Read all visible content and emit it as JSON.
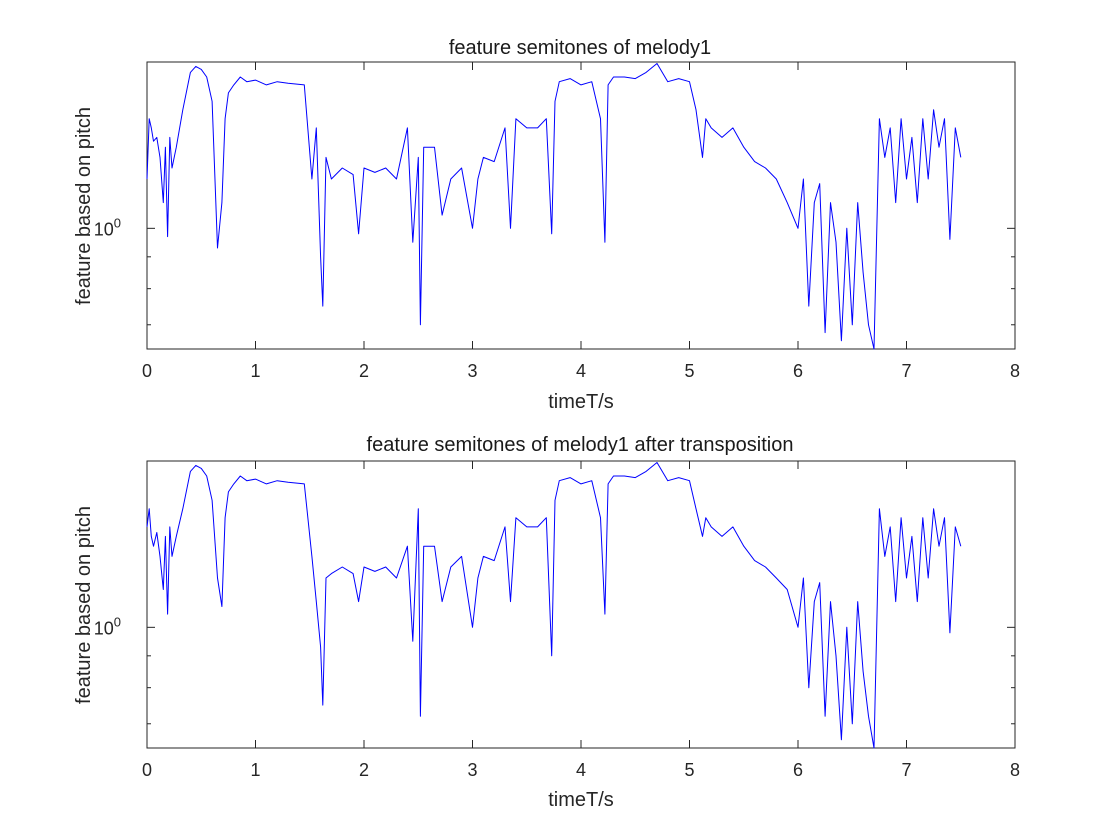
{
  "chart_data": [
    {
      "type": "line",
      "title": "feature semitones of melody1",
      "xlabel": "timeT/s",
      "ylabel": "feature based on pitch",
      "xlim": [
        0,
        8
      ],
      "x_ticks": [
        "0",
        "1",
        "2",
        "3",
        "4",
        "5",
        "6",
        "7",
        "8"
      ],
      "yscale": "log",
      "ylim": [
        0.64,
        1.85
      ],
      "y_major_ticks": [
        {
          "value": 1,
          "base": "10",
          "exp": "0"
        }
      ],
      "grid": false,
      "color": "#0000ff",
      "series": [
        {
          "x": [
            0,
            0.02,
            0.04,
            0.06,
            0.09,
            0.12,
            0.15,
            0.17,
            0.19,
            0.21,
            0.23,
            0.27,
            0.33,
            0.4,
            0.45,
            0.5,
            0.55,
            0.6,
            0.65,
            0.69,
            0.72,
            0.75,
            0.8,
            0.86,
            0.92,
            1.0,
            1.1,
            1.2,
            1.3,
            1.45,
            1.52,
            1.56,
            1.6,
            1.62,
            1.65,
            1.7,
            1.8,
            1.9,
            1.95,
            2.0,
            2.1,
            2.2,
            2.3,
            2.4,
            2.45,
            2.5,
            2.52,
            2.55,
            2.65,
            2.72,
            2.8,
            2.9,
            3.0,
            3.05,
            3.1,
            3.2,
            3.3,
            3.35,
            3.4,
            3.5,
            3.6,
            3.68,
            3.73,
            3.76,
            3.8,
            3.9,
            4.0,
            4.1,
            4.18,
            4.22,
            4.25,
            4.3,
            4.4,
            4.5,
            4.6,
            4.7,
            4.8,
            4.9,
            5.0,
            5.06,
            5.12,
            5.15,
            5.2,
            5.3,
            5.4,
            5.5,
            5.6,
            5.7,
            5.8,
            5.9,
            6.0,
            6.05,
            6.1,
            6.15,
            6.2,
            6.25,
            6.3,
            6.35,
            6.4,
            6.45,
            6.5,
            6.55,
            6.6,
            6.65,
            6.7,
            6.75,
            6.8,
            6.85,
            6.9,
            6.95,
            7.0,
            7.05,
            7.1,
            7.15,
            7.2,
            7.25,
            7.3,
            7.35,
            7.4,
            7.45,
            7.5
          ],
          "y": [
            1.2,
            1.5,
            1.45,
            1.38,
            1.4,
            1.3,
            1.1,
            1.35,
            0.97,
            1.4,
            1.25,
            1.35,
            1.55,
            1.78,
            1.82,
            1.8,
            1.75,
            1.6,
            0.93,
            1.1,
            1.5,
            1.65,
            1.7,
            1.75,
            1.72,
            1.73,
            1.7,
            1.72,
            1.71,
            1.7,
            1.2,
            1.45,
            0.9,
            0.75,
            1.3,
            1.2,
            1.25,
            1.22,
            0.98,
            1.25,
            1.23,
            1.25,
            1.2,
            1.45,
            0.95,
            1.3,
            0.7,
            1.35,
            1.35,
            1.05,
            1.2,
            1.25,
            1.0,
            1.2,
            1.3,
            1.28,
            1.45,
            1.0,
            1.5,
            1.45,
            1.45,
            1.5,
            0.98,
            1.6,
            1.72,
            1.74,
            1.7,
            1.72,
            1.5,
            0.95,
            1.7,
            1.75,
            1.75,
            1.74,
            1.78,
            1.84,
            1.72,
            1.74,
            1.72,
            1.55,
            1.3,
            1.5,
            1.45,
            1.4,
            1.45,
            1.35,
            1.28,
            1.25,
            1.2,
            1.1,
            1.0,
            1.2,
            0.75,
            1.1,
            1.18,
            0.68,
            1.1,
            0.95,
            0.66,
            1.0,
            0.7,
            1.1,
            0.85,
            0.7,
            0.64,
            1.5,
            1.3,
            1.45,
            1.1,
            1.5,
            1.2,
            1.4,
            1.1,
            1.5,
            1.2,
            1.55,
            1.35,
            1.5,
            0.96,
            1.45,
            1.3
          ]
        }
      ]
    },
    {
      "type": "line",
      "title": "feature semitones of melody1 after transposition",
      "xlabel": "timeT/s",
      "ylabel": "feature based on pitch",
      "xlim": [
        0,
        8
      ],
      "x_ticks": [
        "0",
        "1",
        "2",
        "3",
        "4",
        "5",
        "6",
        "7",
        "8"
      ],
      "yscale": "log",
      "ylim": [
        0.64,
        1.85
      ],
      "y_major_ticks": [
        {
          "value": 1,
          "base": "10",
          "exp": "0"
        }
      ],
      "grid": false,
      "color": "#0000ff",
      "series": [
        {
          "x": [
            0,
            0.02,
            0.04,
            0.06,
            0.09,
            0.12,
            0.15,
            0.17,
            0.19,
            0.21,
            0.23,
            0.27,
            0.33,
            0.4,
            0.45,
            0.5,
            0.55,
            0.6,
            0.65,
            0.69,
            0.72,
            0.75,
            0.8,
            0.86,
            0.92,
            1.0,
            1.1,
            1.2,
            1.3,
            1.45,
            1.52,
            1.56,
            1.6,
            1.62,
            1.65,
            1.7,
            1.8,
            1.9,
            1.95,
            2.0,
            2.1,
            2.2,
            2.3,
            2.4,
            2.45,
            2.5,
            2.52,
            2.55,
            2.65,
            2.72,
            2.8,
            2.9,
            3.0,
            3.05,
            3.1,
            3.2,
            3.3,
            3.35,
            3.4,
            3.5,
            3.6,
            3.68,
            3.73,
            3.76,
            3.8,
            3.9,
            4.0,
            4.1,
            4.18,
            4.22,
            4.25,
            4.3,
            4.4,
            4.5,
            4.6,
            4.7,
            4.8,
            4.9,
            5.0,
            5.06,
            5.12,
            5.15,
            5.2,
            5.3,
            5.4,
            5.5,
            5.6,
            5.7,
            5.8,
            5.9,
            6.0,
            6.05,
            6.1,
            6.15,
            6.2,
            6.25,
            6.3,
            6.35,
            6.4,
            6.45,
            6.5,
            6.55,
            6.6,
            6.65,
            6.7,
            6.75,
            6.8,
            6.85,
            6.9,
            6.95,
            7.0,
            7.05,
            7.1,
            7.15,
            7.2,
            7.25,
            7.3,
            7.35,
            7.4,
            7.45,
            7.5
          ],
          "y": [
            1.45,
            1.55,
            1.4,
            1.35,
            1.42,
            1.3,
            1.15,
            1.4,
            1.05,
            1.45,
            1.3,
            1.4,
            1.55,
            1.78,
            1.82,
            1.8,
            1.75,
            1.6,
            1.2,
            1.08,
            1.5,
            1.65,
            1.7,
            1.75,
            1.72,
            1.73,
            1.7,
            1.72,
            1.71,
            1.7,
            1.3,
            1.1,
            0.93,
            0.75,
            1.2,
            1.22,
            1.25,
            1.22,
            1.1,
            1.25,
            1.23,
            1.25,
            1.2,
            1.35,
            0.95,
            1.55,
            0.72,
            1.35,
            1.35,
            1.1,
            1.25,
            1.3,
            1.0,
            1.2,
            1.3,
            1.28,
            1.45,
            1.1,
            1.5,
            1.45,
            1.45,
            1.5,
            0.9,
            1.6,
            1.72,
            1.74,
            1.7,
            1.72,
            1.5,
            1.05,
            1.7,
            1.75,
            1.75,
            1.74,
            1.78,
            1.84,
            1.72,
            1.74,
            1.72,
            1.55,
            1.4,
            1.5,
            1.45,
            1.4,
            1.45,
            1.35,
            1.28,
            1.25,
            1.2,
            1.15,
            1.0,
            1.2,
            0.8,
            1.1,
            1.18,
            0.72,
            1.1,
            0.9,
            0.66,
            1.0,
            0.7,
            1.1,
            0.85,
            0.72,
            0.64,
            1.55,
            1.3,
            1.45,
            1.1,
            1.5,
            1.2,
            1.4,
            1.1,
            1.5,
            1.2,
            1.55,
            1.35,
            1.5,
            0.98,
            1.45,
            1.35
          ]
        }
      ]
    }
  ]
}
